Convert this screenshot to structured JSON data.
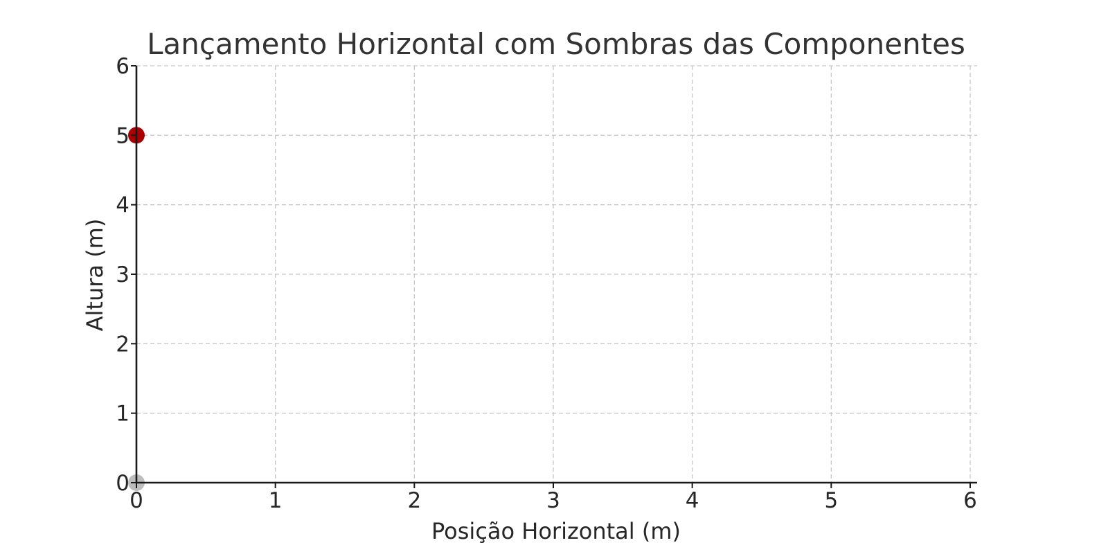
{
  "chart_data": {
    "type": "scatter",
    "title": "Lançamento Horizontal com Sombras das Componentes",
    "xlabel": "Posição Horizontal (m)",
    "ylabel": "Altura (m)",
    "xlim": [
      0,
      6
    ],
    "ylim": [
      0,
      6
    ],
    "xticks": [
      "0",
      "1",
      "2",
      "3",
      "4",
      "5",
      "6"
    ],
    "yticks": [
      "0",
      "1",
      "2",
      "3",
      "4",
      "5",
      "6"
    ],
    "grid": true,
    "grid_style": "dashed",
    "legend": "none",
    "points": [
      {
        "x": 0,
        "y": 5,
        "color": "#aa0000",
        "role": "projectile"
      },
      {
        "x": 0,
        "y": 0,
        "color": "#bdbdbd",
        "role": "shadow"
      }
    ]
  }
}
